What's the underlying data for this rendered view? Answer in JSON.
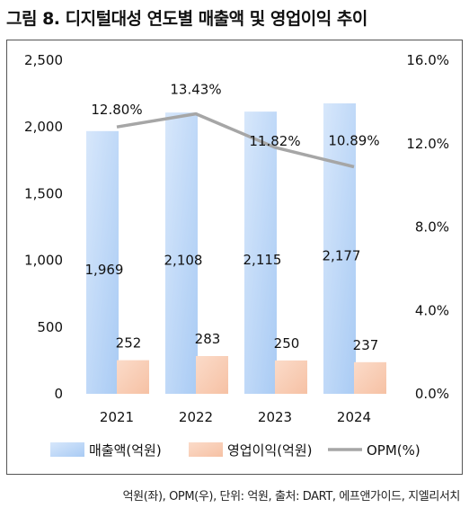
{
  "title": "그림 8. 디지털대성 연도별 매출액 및 영업이익 추이",
  "footer": "억원(좌), OPM(우), 단위: 억원, 출처: DART, 에프앤가이드, 지엘리서치",
  "colors": {
    "revenue_top": "#d7e7fb",
    "revenue_bottom": "#a9cbf4",
    "profit_top": "#fbdbc9",
    "profit_bottom": "#f6c1a4",
    "opm_line": "#a6a6a6",
    "frame": "#555555"
  },
  "chart_data": {
    "type": "bar",
    "categories": [
      "2021",
      "2022",
      "2023",
      "2024"
    ],
    "series": [
      {
        "name": "매출액(억원)",
        "type": "bar",
        "axis": "left",
        "values": [
          1969,
          2108,
          2115,
          2177
        ],
        "labels": [
          "1,969",
          "2,108",
          "2,115",
          "2,177"
        ]
      },
      {
        "name": "영업이익(억원)",
        "type": "bar",
        "axis": "left",
        "values": [
          252,
          283,
          250,
          237
        ],
        "labels": [
          "252",
          "283",
          "250",
          "237"
        ]
      },
      {
        "name": "OPM(%)",
        "type": "line",
        "axis": "right",
        "values": [
          12.8,
          13.43,
          11.82,
          10.89
        ],
        "labels": [
          "12.80%",
          "13.43%",
          "11.82%",
          "10.89%"
        ]
      }
    ],
    "ylim_left": [
      0,
      2500
    ],
    "ylim_right": [
      0,
      16
    ],
    "yticks_left": [
      "0",
      "500",
      "1,000",
      "1,500",
      "2,000",
      "2,500"
    ],
    "yticks_right": [
      "0.0%",
      "4.0%",
      "8.0%",
      "12.0%",
      "16.0%"
    ],
    "legend": [
      "매출액(억원)",
      "영업이익(억원)",
      "OPM(%)"
    ],
    "legend_position": "bottom",
    "grid": false
  }
}
